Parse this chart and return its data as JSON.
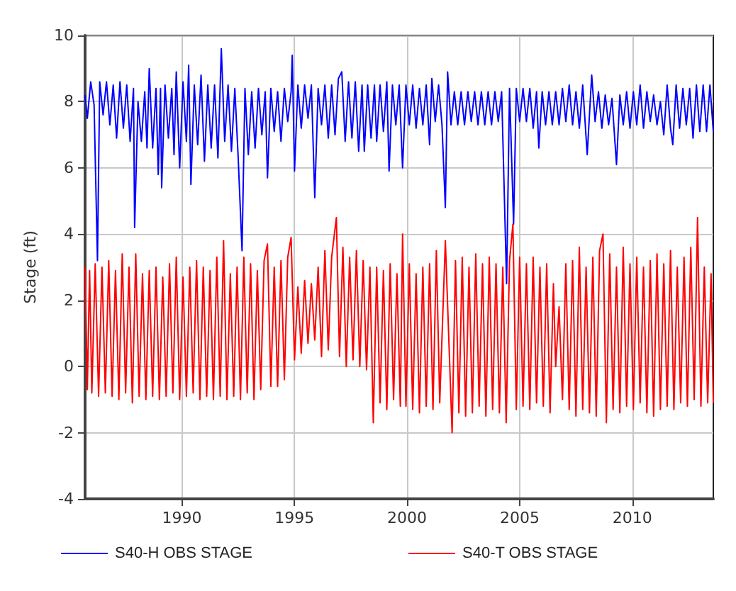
{
  "chart_data": {
    "type": "line",
    "ylabel": "Stage (ft)",
    "xlim": [
      1985.7,
      2013.6
    ],
    "ylim": [
      -4,
      10
    ],
    "xticks": [
      1990,
      1995,
      2000,
      2005,
      2010
    ],
    "yticks": [
      -4,
      -2,
      0,
      2,
      4,
      6,
      8,
      10
    ],
    "grid": true,
    "legend": "bottom",
    "marker": "none",
    "line_style": "solid",
    "series": [
      {
        "name": "S40-H OBS STAGE",
        "color": "#0000ff",
        "x": [
          1985.7,
          1985.8,
          1985.95,
          1986.1,
          1986.25,
          1986.35,
          1986.5,
          1986.65,
          1986.8,
          1986.95,
          1987.1,
          1987.25,
          1987.4,
          1987.55,
          1987.7,
          1987.85,
          1987.9,
          1988.05,
          1988.2,
          1988.35,
          1988.45,
          1988.55,
          1988.7,
          1988.85,
          1988.95,
          1989.05,
          1989.1,
          1989.25,
          1989.4,
          1989.55,
          1989.65,
          1989.75,
          1989.9,
          1990.05,
          1990.2,
          1990.3,
          1990.4,
          1990.55,
          1990.7,
          1990.85,
          1991.0,
          1991.15,
          1991.3,
          1991.45,
          1991.6,
          1991.75,
          1991.9,
          1992.05,
          1992.2,
          1992.35,
          1992.5,
          1992.67,
          1992.8,
          1992.95,
          1993.1,
          1993.25,
          1993.4,
          1993.55,
          1993.7,
          1993.8,
          1993.95,
          1994.1,
          1994.25,
          1994.4,
          1994.55,
          1994.7,
          1994.85,
          1994.9,
          1995.0,
          1995.15,
          1995.3,
          1995.45,
          1995.6,
          1995.75,
          1995.9,
          1996.05,
          1996.2,
          1996.35,
          1996.5,
          1996.65,
          1996.8,
          1996.95,
          1997.1,
          1997.25,
          1997.4,
          1997.55,
          1997.7,
          1997.85,
          1998.0,
          1998.1,
          1998.25,
          1998.4,
          1998.55,
          1998.65,
          1998.8,
          1998.95,
          1999.1,
          1999.2,
          1999.35,
          1999.5,
          1999.65,
          1999.8,
          1999.95,
          2000.1,
          2000.25,
          2000.4,
          2000.55,
          2000.7,
          2000.85,
          2001.0,
          2001.1,
          2001.25,
          2001.4,
          2001.55,
          2001.7,
          2001.8,
          2001.95,
          2002.1,
          2002.25,
          2002.4,
          2002.55,
          2002.7,
          2002.85,
          2003.0,
          2003.15,
          2003.3,
          2003.45,
          2003.6,
          2003.75,
          2003.9,
          2004.05,
          2004.2,
          2004.42,
          2004.55,
          2004.73,
          2004.85,
          2005.0,
          2005.15,
          2005.3,
          2005.45,
          2005.6,
          2005.75,
          2005.85,
          2006.0,
          2006.15,
          2006.3,
          2006.45,
          2006.6,
          2006.75,
          2006.9,
          2007.05,
          2007.2,
          2007.35,
          2007.5,
          2007.65,
          2007.8,
          2008.0,
          2008.2,
          2008.35,
          2008.5,
          2008.65,
          2008.8,
          2008.95,
          2009.1,
          2009.3,
          2009.45,
          2009.6,
          2009.75,
          2009.9,
          2010.05,
          2010.2,
          2010.35,
          2010.5,
          2010.65,
          2010.8,
          2010.95,
          2011.1,
          2011.25,
          2011.4,
          2011.55,
          2011.7,
          2011.8,
          2011.95,
          2012.1,
          2012.25,
          2012.4,
          2012.55,
          2012.7,
          2012.85,
          2013.0,
          2013.15,
          2013.3,
          2013.45,
          2013.6
        ],
        "values": [
          8.2,
          7.5,
          8.6,
          7.9,
          3.2,
          8.6,
          7.6,
          8.6,
          7.3,
          8.5,
          6.9,
          8.6,
          7.2,
          8.5,
          6.8,
          8.4,
          4.2,
          8.0,
          6.8,
          8.3,
          6.6,
          9.0,
          6.6,
          8.4,
          5.8,
          8.4,
          5.4,
          8.5,
          6.9,
          8.4,
          6.4,
          8.9,
          6.0,
          8.6,
          6.8,
          9.1,
          5.5,
          8.5,
          6.7,
          8.8,
          6.2,
          8.5,
          6.6,
          8.5,
          6.3,
          9.6,
          6.8,
          8.5,
          6.5,
          8.4,
          6.3,
          3.5,
          8.4,
          6.4,
          8.3,
          6.6,
          8.4,
          7.0,
          8.3,
          5.7,
          8.4,
          7.1,
          8.3,
          6.8,
          8.4,
          7.4,
          8.3,
          9.4,
          5.9,
          8.5,
          7.2,
          8.5,
          7.5,
          8.5,
          5.1,
          8.4,
          7.3,
          8.5,
          6.9,
          8.5,
          7.0,
          8.7,
          8.9,
          6.8,
          8.6,
          6.9,
          8.6,
          6.5,
          8.5,
          6.5,
          8.5,
          6.9,
          8.5,
          6.8,
          8.5,
          7.1,
          8.6,
          5.9,
          8.5,
          7.3,
          8.5,
          6.0,
          8.5,
          7.3,
          8.5,
          7.2,
          8.4,
          7.3,
          8.5,
          6.7,
          8.7,
          7.4,
          8.5,
          7.3,
          4.8,
          8.9,
          7.3,
          8.3,
          7.3,
          8.3,
          7.3,
          8.3,
          7.4,
          8.3,
          7.3,
          8.3,
          7.3,
          8.3,
          7.3,
          8.3,
          7.4,
          8.3,
          2.5,
          8.4,
          4.3,
          8.4,
          7.4,
          8.4,
          7.4,
          8.4,
          7.2,
          8.3,
          6.6,
          8.3,
          7.3,
          8.3,
          7.3,
          8.3,
          7.3,
          8.4,
          7.4,
          8.5,
          7.3,
          8.3,
          7.2,
          8.5,
          6.4,
          8.8,
          7.4,
          8.3,
          7.2,
          8.2,
          7.3,
          8.1,
          6.1,
          8.2,
          7.3,
          8.3,
          7.2,
          8.3,
          7.3,
          8.5,
          7.2,
          8.3,
          7.4,
          8.2,
          7.3,
          8.0,
          7.0,
          8.5,
          7.2,
          6.7,
          8.5,
          7.2,
          8.4,
          7.3,
          8.4,
          6.9,
          8.5,
          7.1,
          8.5,
          7.1,
          8.5,
          7.1
        ]
      },
      {
        "name": "S40-T OBS STAGE",
        "color": "#ff0000",
        "x": [
          1985.7,
          1985.8,
          1985.9,
          1986.0,
          1986.15,
          1986.3,
          1986.45,
          1986.6,
          1986.75,
          1986.9,
          1987.05,
          1987.2,
          1987.35,
          1987.5,
          1987.65,
          1987.8,
          1987.95,
          1988.1,
          1988.25,
          1988.4,
          1988.55,
          1988.7,
          1988.85,
          1989.0,
          1989.15,
          1989.3,
          1989.45,
          1989.6,
          1989.75,
          1989.9,
          1990.05,
          1990.2,
          1990.35,
          1990.5,
          1990.65,
          1990.8,
          1990.95,
          1991.1,
          1991.25,
          1991.4,
          1991.55,
          1991.7,
          1991.85,
          1992.0,
          1992.15,
          1992.3,
          1992.45,
          1992.6,
          1992.75,
          1992.9,
          1993.05,
          1993.2,
          1993.35,
          1993.5,
          1993.65,
          1993.8,
          1993.95,
          1994.1,
          1994.25,
          1994.4,
          1994.55,
          1994.7,
          1994.85,
          1995.0,
          1995.15,
          1995.3,
          1995.45,
          1995.6,
          1995.75,
          1995.9,
          1996.05,
          1996.2,
          1996.35,
          1996.5,
          1996.65,
          1996.86,
          1997.0,
          1997.15,
          1997.3,
          1997.45,
          1997.6,
          1997.75,
          1997.9,
          1998.05,
          1998.2,
          1998.35,
          1998.5,
          1998.65,
          1998.8,
          1998.95,
          1999.1,
          1999.25,
          1999.4,
          1999.55,
          1999.7,
          1999.8,
          1999.95,
          2000.1,
          2000.25,
          2000.4,
          2000.55,
          2000.7,
          2000.85,
          2001.0,
          2001.15,
          2001.3,
          2001.45,
          2001.7,
          2002.0,
          2002.15,
          2002.3,
          2002.45,
          2002.6,
          2002.75,
          2002.9,
          2003.05,
          2003.2,
          2003.35,
          2003.5,
          2003.65,
          2003.8,
          2003.95,
          2004.1,
          2004.25,
          2004.4,
          2004.55,
          2004.7,
          2004.85,
          2005.0,
          2005.15,
          2005.3,
          2005.45,
          2005.6,
          2005.75,
          2005.9,
          2006.05,
          2006.2,
          2006.35,
          2006.5,
          2006.6,
          2006.75,
          2006.9,
          2007.05,
          2007.2,
          2007.35,
          2007.5,
          2007.65,
          2007.8,
          2007.95,
          2008.1,
          2008.25,
          2008.4,
          2008.55,
          2008.7,
          2008.85,
          2009.0,
          2009.15,
          2009.3,
          2009.45,
          2009.6,
          2009.75,
          2009.9,
          2010.05,
          2010.2,
          2010.35,
          2010.5,
          2010.65,
          2010.8,
          2010.95,
          2011.1,
          2011.25,
          2011.4,
          2011.55,
          2011.7,
          2011.85,
          2012.0,
          2012.15,
          2012.3,
          2012.45,
          2012.6,
          2012.75,
          2012.9,
          2013.05,
          2013.2,
          2013.35,
          2013.5,
          2013.6
        ],
        "values": [
          3.0,
          -0.7,
          2.9,
          -0.8,
          3.1,
          -0.9,
          3.0,
          -0.8,
          3.2,
          -0.9,
          2.9,
          -1.0,
          3.4,
          -0.8,
          3.0,
          -1.1,
          3.4,
          -0.9,
          2.8,
          -1.0,
          2.9,
          -0.9,
          3.0,
          -1.0,
          2.7,
          -0.9,
          3.1,
          -0.8,
          3.3,
          -1.0,
          2.7,
          -0.9,
          3.0,
          -0.8,
          3.2,
          -1.0,
          3.0,
          -0.9,
          2.9,
          -1.0,
          3.3,
          -0.9,
          3.8,
          -1.0,
          2.8,
          -0.9,
          3.0,
          -1.0,
          3.3,
          -0.8,
          3.1,
          -1.0,
          2.9,
          -0.7,
          3.2,
          3.7,
          -0.6,
          3.0,
          -0.6,
          3.2,
          -0.4,
          3.3,
          3.9,
          0.2,
          2.4,
          0.4,
          2.6,
          0.7,
          2.5,
          0.8,
          3.0,
          0.3,
          3.5,
          0.5,
          3.3,
          4.5,
          0.3,
          3.6,
          0.0,
          3.3,
          0.2,
          3.5,
          0.0,
          3.2,
          -0.1,
          3.0,
          -1.7,
          3.0,
          -1.1,
          2.9,
          -1.3,
          3.1,
          -1.0,
          2.8,
          -1.2,
          4.0,
          -1.2,
          3.1,
          -1.3,
          2.8,
          -1.4,
          3.0,
          -1.2,
          3.1,
          -1.3,
          3.5,
          -1.1,
          3.8,
          -2.0,
          3.2,
          -1.4,
          3.3,
          -1.5,
          3.0,
          -1.4,
          3.4,
          -1.2,
          3.1,
          -1.5,
          3.3,
          -1.3,
          3.1,
          -1.4,
          3.0,
          -1.7,
          3.2,
          4.3,
          -1.3,
          3.3,
          -1.2,
          3.1,
          -1.3,
          3.3,
          -1.1,
          3.0,
          -1.2,
          3.1,
          -1.4,
          2.5,
          0.0,
          1.8,
          -1.0,
          3.1,
          -1.3,
          3.2,
          -1.5,
          3.6,
          -1.3,
          3.0,
          -1.4,
          3.3,
          -1.5,
          3.5,
          4.0,
          -1.7,
          3.4,
          -1.3,
          3.0,
          -1.4,
          3.6,
          -1.2,
          3.1,
          -1.3,
          3.3,
          -1.1,
          3.0,
          -1.4,
          3.2,
          -1.5,
          3.4,
          -1.3,
          3.1,
          -1.2,
          3.5,
          -1.3,
          3.0,
          -1.1,
          3.3,
          -1.2,
          3.6,
          -1.0,
          4.5,
          -1.2,
          3.0,
          -1.1,
          2.8,
          -1.1
        ]
      }
    ]
  }
}
